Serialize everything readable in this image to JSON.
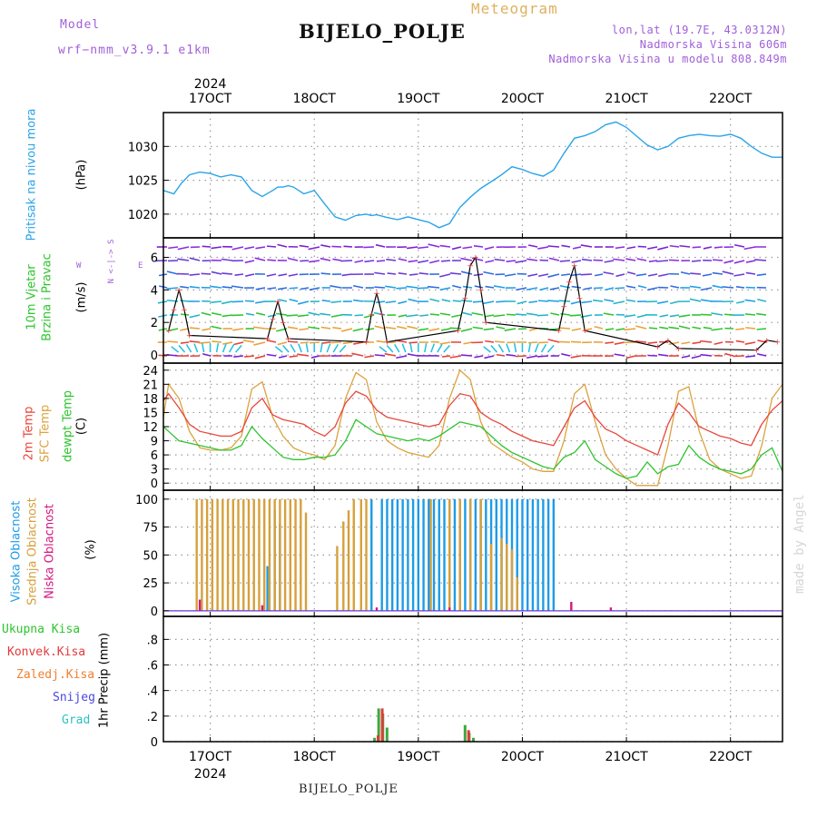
{
  "header": {
    "model_label": "Model",
    "model_name": "wrf−nmm_v3.9.1  e1km",
    "meteogram_label": "Meteogram",
    "station": "BIJELO_POLJE",
    "lonlat": "lon,lat (19.7E, 43.0312N)",
    "elevation": "Nadmorska Visina 606m",
    "model_elevation": "Nadmorska Visina u modelu 808.849m",
    "credit": "made by Angel",
    "footer_station": "BIJELO_POLJE"
  },
  "time_axis": {
    "top_year": "2024",
    "bottom_year": "2024",
    "ticks": [
      "17OCT",
      "18OCT",
      "19OCT",
      "20OCT",
      "21OCT",
      "22OCT"
    ]
  },
  "panel_labels": {
    "pressure": {
      "name": "Pritisak na nivou mora",
      "unit": "(hPa)"
    },
    "wind": {
      "name1": "10m Vjetar",
      "name2": "Brzina i Pravac",
      "unit": "(m/s)",
      "compass_ns": "N <-|-> S",
      "compass_w": "W",
      "compass_e": "E"
    },
    "temp": {
      "t2m": "2m Temp",
      "sfc": "SFC Temp",
      "dew": "dewpt Temp",
      "unit": "(C)"
    },
    "cloud": {
      "high": "Visoka Oblacnost",
      "mid": "Srednja Oblacnost",
      "low": "Niska Oblacnost",
      "unit": "(%)"
    },
    "precip": {
      "total": "Ukupna Kisa",
      "conv": "Konvek.Kisa",
      "frozen": "Zaledj.Kisa",
      "snow": "Snijeg",
      "hail": "Grad",
      "unit": "1hr Precip (mm)"
    }
  },
  "colors": {
    "pressure": "#2aa4e8",
    "t2m": "#e8473c",
    "sfc": "#dca23e",
    "dew": "#2ec42e",
    "cloud_high": "#1e9be6",
    "cloud_mid": "#d6a03c",
    "cloud_low": "#d6187e",
    "precip_total": "#3ea83e",
    "precip_conv": "#e23a3a",
    "precip_frozen": "#f08030",
    "precip_snow": "#4848e0",
    "precip_hail": "#30c0c0"
  },
  "chart_data": [
    {
      "type": "line",
      "panel": "pressure",
      "ylabel": "(hPa)",
      "yticks": [
        1020,
        1025,
        1030
      ],
      "ylim": [
        1016.5,
        1035
      ],
      "xlim": [
        16.55,
        22.5
      ],
      "grid": true,
      "series": [
        {
          "x": [
            16.55,
            16.65,
            16.72,
            16.8,
            16.9,
            17.0,
            17.1,
            17.2,
            17.3,
            17.4,
            17.5,
            17.6,
            17.65,
            17.7,
            17.75,
            17.8,
            17.9,
            18.0,
            18.1,
            18.2,
            18.3,
            18.4,
            18.5,
            18.55,
            18.6,
            18.7,
            18.8,
            18.9,
            19.0,
            19.1,
            19.2,
            19.3,
            19.4,
            19.5,
            19.6,
            19.7,
            19.8,
            19.9,
            20.0,
            20.1,
            20.2,
            20.3,
            20.4,
            20.5,
            20.6,
            20.7,
            20.8,
            20.9,
            21.0,
            21.1,
            21.2,
            21.3,
            21.4,
            21.5,
            21.6,
            21.7,
            21.8,
            21.9,
            22.0,
            22.1,
            22.2,
            22.3,
            22.4,
            22.5
          ],
          "y": [
            1023.5,
            1023.0,
            1024.5,
            1025.8,
            1026.2,
            1026.0,
            1025.5,
            1025.8,
            1025.5,
            1023.5,
            1022.6,
            1023.5,
            1024.0,
            1024.0,
            1024.2,
            1024.0,
            1023.0,
            1023.5,
            1021.5,
            1019.6,
            1019.1,
            1019.8,
            1020.0,
            1019.8,
            1019.9,
            1019.5,
            1019.2,
            1019.6,
            1019.2,
            1018.8,
            1018.0,
            1018.6,
            1021.0,
            1022.5,
            1023.8,
            1024.8,
            1025.8,
            1027.0,
            1026.6,
            1026.0,
            1025.6,
            1026.5,
            1029.0,
            1031.2,
            1031.6,
            1032.2,
            1033.2,
            1033.6,
            1032.8,
            1031.5,
            1030.2,
            1029.5,
            1030.0,
            1031.2,
            1031.6,
            1031.8,
            1031.6,
            1031.5,
            1031.8,
            1031.2,
            1030.0,
            1029.0,
            1028.4,
            1028.4
          ]
        }
      ]
    },
    {
      "type": "scatter",
      "panel": "wind",
      "ylabel": "(m/s)",
      "yticks": [
        0,
        2,
        4,
        6
      ],
      "ylim": [
        -0.5,
        7.2
      ],
      "xlim": [
        16.55,
        22.5
      ],
      "series": [
        {
          "name": "",
          "x": [
            16.6,
            16.65,
            16.7,
            16.75,
            16.8,
            17.55,
            17.6,
            17.65,
            17.7,
            17.75,
            18.5,
            18.55,
            18.6,
            18.65,
            18.7,
            19.38,
            19.45,
            19.5,
            19.55,
            19.6,
            19.65,
            20.35,
            20.4,
            20.45,
            20.5,
            20.55,
            20.6,
            21.3,
            21.4,
            21.5,
            22.25,
            22.35,
            22.45
          ],
          "y": [
            1.5,
            2.8,
            4.0,
            2.8,
            1.2,
            1.0,
            2.2,
            3.3,
            2.0,
            1.0,
            0.8,
            2.5,
            3.8,
            2.5,
            0.8,
            1.5,
            3.5,
            5.5,
            6.0,
            4.0,
            2.0,
            1.5,
            3.0,
            4.5,
            5.5,
            3.5,
            1.5,
            0.5,
            0.9,
            0.4,
            0.3,
            0.9,
            0.8
          ]
        }
      ]
    },
    {
      "type": "line",
      "panel": "temperature",
      "ylabel": "(C)",
      "yticks": [
        0,
        3,
        6,
        9,
        12,
        15,
        18,
        21,
        24
      ],
      "ylim": [
        -1.5,
        25.5
      ],
      "xlim": [
        16.55,
        22.5
      ],
      "series": [
        {
          "name": "2m Temp",
          "x": [
            16.55,
            16.6,
            16.7,
            16.8,
            16.9,
            17.0,
            17.1,
            17.2,
            17.3,
            17.4,
            17.5,
            17.6,
            17.7,
            17.8,
            17.9,
            18.0,
            18.1,
            18.2,
            18.3,
            18.4,
            18.5,
            18.6,
            18.7,
            18.8,
            18.9,
            19.0,
            19.1,
            19.2,
            19.3,
            19.4,
            19.5,
            19.6,
            19.7,
            19.8,
            19.9,
            20.0,
            20.1,
            20.2,
            20.3,
            20.4,
            20.5,
            20.6,
            20.7,
            20.8,
            20.9,
            21.0,
            21.1,
            21.2,
            21.3,
            21.4,
            21.5,
            21.6,
            21.7,
            21.8,
            21.9,
            22.0,
            22.1,
            22.2,
            22.3,
            22.4,
            22.5
          ],
          "y": [
            17.5,
            19.0,
            16.0,
            12.5,
            11.0,
            10.5,
            10.0,
            10.0,
            11.0,
            16.0,
            18.0,
            14.5,
            13.5,
            13.0,
            12.5,
            11.0,
            10.0,
            12.0,
            17.0,
            19.5,
            18.5,
            15.5,
            14.0,
            13.5,
            13.0,
            12.5,
            12.0,
            12.5,
            16.5,
            19.0,
            18.5,
            15.0,
            13.5,
            12.5,
            11.0,
            10.0,
            9.0,
            8.5,
            8.0,
            12.0,
            16.0,
            17.5,
            14.0,
            11.5,
            10.5,
            9.0,
            8.0,
            7.0,
            6.0,
            12.5,
            17.0,
            15.0,
            12.0,
            11.0,
            10.0,
            9.5,
            8.5,
            8.0,
            12.5,
            15.5,
            17.5
          ]
        },
        {
          "name": "SFC Temp",
          "x": [
            16.55,
            16.6,
            16.7,
            16.8,
            16.9,
            17.0,
            17.1,
            17.2,
            17.3,
            17.4,
            17.5,
            17.6,
            17.7,
            17.8,
            17.9,
            18.0,
            18.1,
            18.2,
            18.3,
            18.4,
            18.5,
            18.6,
            18.7,
            18.8,
            18.9,
            19.0,
            19.1,
            19.2,
            19.3,
            19.4,
            19.5,
            19.6,
            19.7,
            19.8,
            19.9,
            20.0,
            20.1,
            20.2,
            20.3,
            20.4,
            20.5,
            20.6,
            20.7,
            20.8,
            20.9,
            21.0,
            21.1,
            21.2,
            21.3,
            21.4,
            21.5,
            21.6,
            21.7,
            21.8,
            21.9,
            22.0,
            22.1,
            22.2,
            22.3,
            22.4,
            22.5
          ],
          "y": [
            14.0,
            21.0,
            18.0,
            11.0,
            7.5,
            7.0,
            7.0,
            7.5,
            10.0,
            20.0,
            21.5,
            14.0,
            10.0,
            7.5,
            6.5,
            6.0,
            5.0,
            8.0,
            18.0,
            23.5,
            22.0,
            13.0,
            9.0,
            7.5,
            6.5,
            6.0,
            5.5,
            8.0,
            18.0,
            24.0,
            22.0,
            13.0,
            8.5,
            7.0,
            5.5,
            4.5,
            3.0,
            2.5,
            2.5,
            9.0,
            19.0,
            21.0,
            13.0,
            6.0,
            3.0,
            1.0,
            -0.5,
            -0.5,
            -0.5,
            8.0,
            19.5,
            20.5,
            11.0,
            5.0,
            3.0,
            2.0,
            1.0,
            1.5,
            8.0,
            18.0,
            21.0
          ]
        },
        {
          "name": "dewpt Temp",
          "x": [
            16.55,
            16.6,
            16.7,
            16.8,
            16.9,
            17.0,
            17.1,
            17.2,
            17.3,
            17.4,
            17.5,
            17.6,
            17.7,
            17.8,
            17.9,
            18.0,
            18.1,
            18.2,
            18.3,
            18.4,
            18.5,
            18.6,
            18.7,
            18.8,
            18.9,
            19.0,
            19.1,
            19.2,
            19.3,
            19.4,
            19.5,
            19.6,
            19.7,
            19.8,
            19.9,
            20.0,
            20.1,
            20.2,
            20.3,
            20.4,
            20.5,
            20.6,
            20.7,
            20.8,
            20.9,
            21.0,
            21.1,
            21.2,
            21.3,
            21.4,
            21.5,
            21.6,
            21.7,
            21.8,
            21.9,
            22.0,
            22.1,
            22.2,
            22.3,
            22.4,
            22.5
          ],
          "y": [
            12.0,
            11.0,
            9.0,
            8.5,
            8.0,
            7.5,
            7.0,
            7.0,
            8.0,
            12.0,
            9.5,
            7.5,
            5.5,
            5.0,
            5.0,
            5.5,
            5.5,
            6.0,
            9.0,
            13.5,
            12.0,
            10.5,
            10.0,
            9.5,
            9.0,
            9.5,
            9.0,
            10.0,
            11.5,
            13.0,
            12.5,
            12.0,
            10.0,
            8.0,
            6.5,
            5.5,
            4.5,
            3.5,
            3.0,
            5.5,
            6.5,
            9.0,
            5.0,
            3.5,
            2.0,
            1.0,
            1.5,
            4.5,
            2.0,
            3.5,
            4.0,
            8.0,
            5.5,
            4.0,
            3.0,
            2.5,
            2.0,
            3.0,
            6.0,
            7.5,
            2.5
          ]
        }
      ]
    },
    {
      "type": "bar",
      "panel": "cloud",
      "ylabel": "(%)",
      "yticks": [
        0,
        25,
        50,
        75,
        100
      ],
      "ylim": [
        -5,
        108
      ],
      "xlim": [
        16.55,
        22.5
      ],
      "series": [
        {
          "name": "Visoka Oblacnost",
          "x": [
            16.92,
            16.95,
            17.02,
            17.07,
            17.12,
            17.2,
            17.27,
            17.33,
            17.38,
            17.45,
            17.5,
            17.55,
            17.62,
            17.67,
            17.72,
            18.55,
            18.65,
            18.7,
            18.75,
            18.8,
            18.85,
            18.9,
            18.95,
            19.0,
            19.05,
            19.1,
            19.15,
            19.2,
            19.25,
            19.3,
            19.35,
            19.4,
            19.45,
            19.5,
            19.55,
            19.6,
            19.65,
            19.7,
            19.75,
            19.8,
            19.85,
            19.9,
            19.95,
            20.0,
            20.05,
            20.1,
            20.15,
            20.2,
            20.25,
            20.3
          ],
          "y": [
            0,
            0,
            0,
            0,
            0,
            0,
            0,
            0,
            0,
            0,
            0,
            40,
            90,
            78,
            0,
            100,
            100,
            100,
            100,
            100,
            100,
            100,
            100,
            100,
            100,
            100,
            100,
            100,
            100,
            100,
            100,
            100,
            100,
            100,
            100,
            100,
            100,
            100,
            100,
            100,
            100,
            100,
            100,
            100,
            100,
            100,
            100,
            100,
            100,
            100
          ]
        },
        {
          "name": "Srednja Oblacnost",
          "x": [
            16.87,
            16.92,
            16.97,
            17.02,
            17.07,
            17.12,
            17.17,
            17.22,
            17.27,
            17.32,
            17.37,
            17.42,
            17.47,
            17.52,
            17.57,
            17.62,
            17.67,
            17.72,
            17.77,
            17.82,
            17.87,
            17.92,
            18.22,
            18.28,
            18.33,
            18.38,
            18.45,
            18.5,
            19.12,
            19.3,
            19.4,
            19.5,
            19.6,
            19.7,
            19.8,
            19.85,
            19.9,
            19.95
          ],
          "y": [
            100,
            100,
            100,
            100,
            100,
            100,
            100,
            100,
            100,
            100,
            100,
            100,
            100,
            100,
            100,
            100,
            100,
            100,
            100,
            100,
            100,
            88,
            58,
            80,
            90,
            100,
            100,
            100,
            100,
            100,
            100,
            100,
            100,
            60,
            65,
            60,
            55,
            30
          ]
        },
        {
          "name": "Niska Oblacnost",
          "x": [
            16.9,
            17.5,
            18.6,
            19.3,
            20.47,
            20.85
          ],
          "y": [
            10,
            5,
            3,
            3,
            8,
            3
          ]
        }
      ]
    },
    {
      "type": "bar",
      "panel": "precip",
      "ylabel": "1hr Precip (mm)",
      "yticks": [
        0,
        0.2,
        0.4,
        0.6,
        0.8
      ],
      "ylim": [
        0,
        0.98
      ],
      "xlim": [
        16.55,
        22.5
      ],
      "series": [
        {
          "name": "Ukupna Kisa",
          "x": [
            18.58,
            18.62,
            18.66,
            18.7,
            19.45,
            19.49,
            19.53
          ],
          "y": [
            0.03,
            0.26,
            0.22,
            0.11,
            0.13,
            0.07,
            0.03
          ]
        },
        {
          "name": "Konvek.Kisa",
          "x": [
            18.6,
            18.64,
            19.47
          ],
          "y": [
            0.05,
            0.26,
            0.09
          ]
        }
      ]
    }
  ]
}
